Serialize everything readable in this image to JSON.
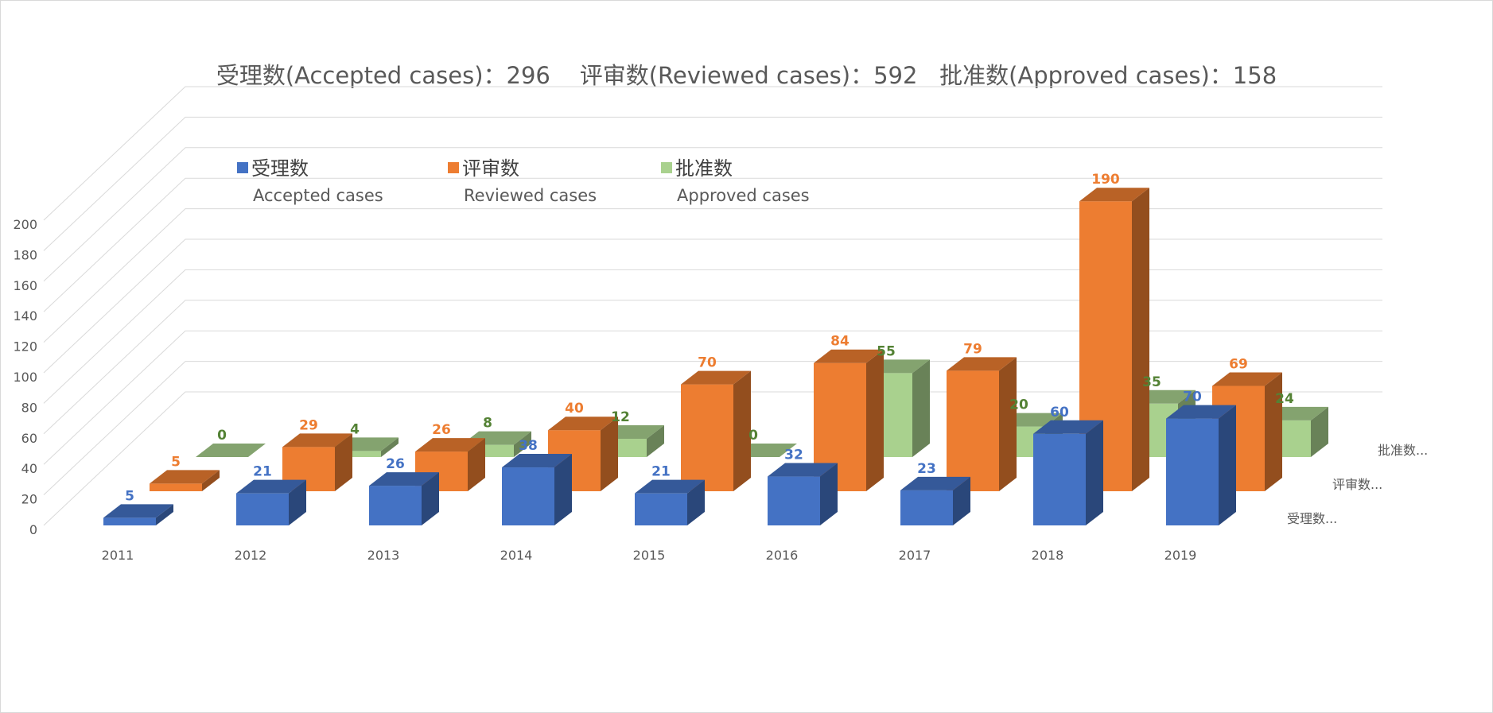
{
  "title": "受理数(Accepted cases)：296    评审数(Reviewed cases)：592   批准数(Approved cases)：158",
  "chart_data": {
    "type": "bar",
    "style": "3d-column",
    "categories": [
      "2011",
      "2012",
      "2013",
      "2014",
      "2015",
      "2016",
      "2017",
      "2018",
      "2019"
    ],
    "series": [
      {
        "name": "受理数",
        "name_en": "Accepted cases",
        "depth_label": "受理数...",
        "color": "#4472C4",
        "label_color": "#4472C4",
        "values": [
          5,
          21,
          26,
          38,
          21,
          32,
          23,
          60,
          70
        ]
      },
      {
        "name": "评审数",
        "name_en": "Reviewed cases",
        "depth_label": "评审数...",
        "color": "#ED7D31",
        "label_color": "#ED7D31",
        "values": [
          5,
          29,
          26,
          40,
          70,
          84,
          79,
          190,
          69
        ]
      },
      {
        "name": "批准数",
        "name_en": "Approved cases",
        "depth_label": "批准数...",
        "color": "#A9D18E",
        "label_color": "#548235",
        "values": [
          0,
          4,
          8,
          12,
          0,
          55,
          20,
          35,
          24
        ]
      }
    ],
    "y_ticks": [
      "0",
      "20",
      "40",
      "60",
      "80",
      "100",
      "120",
      "140",
      "160",
      "180",
      "200"
    ],
    "ylim": [
      0,
      200
    ],
    "grid": true,
    "legend": "top-left"
  }
}
